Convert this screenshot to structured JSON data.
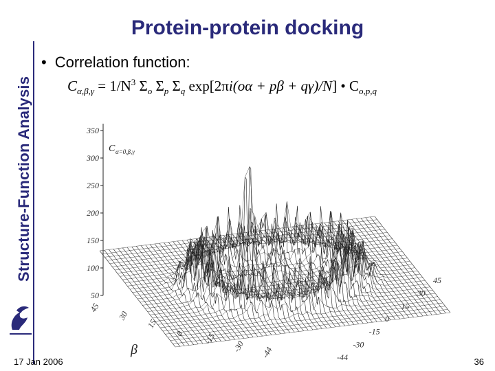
{
  "slide": {
    "side_title": "Structure-Function Analysis",
    "title": "Protein-protein docking",
    "bullet_marker": "•",
    "bullet_text": "Correlation function:",
    "formula": {
      "lhs": "C",
      "lhs_sub": "α,β,γ",
      "eq": " = 1/N",
      "pow": "3",
      "sum1": " Σ",
      "sum1_sub": "o",
      "sum2": " Σ",
      "sum2_sub": "p",
      "sum3": " Σ",
      "sum3_sub": "q",
      "exp_part": " exp[2π",
      "i_part": "i(oα + pβ + qγ)/N",
      "close": "] • C",
      "rhs_sub": "o,p,q"
    },
    "footer_date": "17 Jan 2006",
    "page_number": "36"
  },
  "plot": {
    "z_ticks": [
      "350",
      "300",
      "250",
      "200",
      "150",
      "100",
      "50"
    ],
    "z_label": "C",
    "z_label_sub": "α=0,β,γ",
    "beta_ticks": [
      "45",
      "30",
      "15",
      "0",
      "-15",
      "-30",
      "-44"
    ],
    "beta_label": "β",
    "gamma_ticks": [
      "45",
      "30",
      "15",
      "0",
      "-15",
      "-30",
      "-44"
    ]
  },
  "colors": {
    "title": "#2a2a7a",
    "plot_lines": "#222222"
  }
}
